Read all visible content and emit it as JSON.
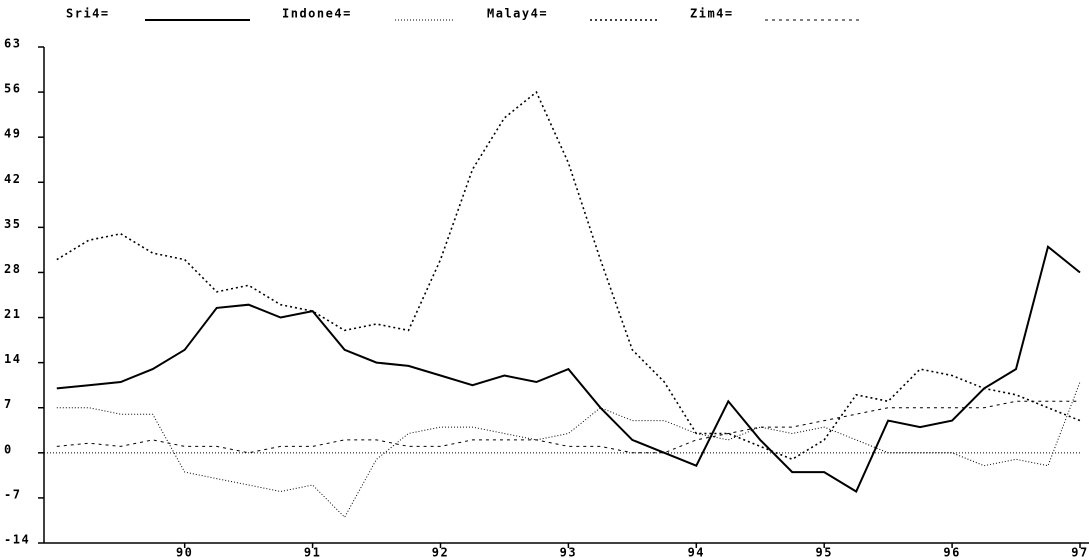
{
  "chart_data": {
    "type": "line",
    "x": [
      89,
      89.25,
      89.5,
      89.75,
      90,
      90.25,
      90.5,
      90.75,
      91,
      91.25,
      91.5,
      91.75,
      92,
      92.25,
      92.5,
      92.75,
      93,
      93.25,
      93.5,
      93.75,
      94,
      94.25,
      94.5,
      94.75,
      95,
      95.25,
      95.5,
      95.75,
      96,
      96.25,
      96.5,
      96.75,
      97
    ],
    "series": [
      {
        "name": "Sri4=",
        "color": "#000000",
        "style": "solid",
        "values": [
          10,
          10.5,
          11,
          13,
          16,
          22.5,
          23,
          21,
          22,
          16,
          14,
          13.5,
          12,
          10.5,
          12,
          11,
          13,
          7,
          2,
          0,
          -2,
          8,
          2,
          -3,
          -3,
          -6,
          5,
          4,
          5,
          10,
          13,
          32,
          28
        ]
      },
      {
        "name": "Indone4=",
        "color": "#000000",
        "style": "dotted",
        "values": [
          7,
          7,
          6,
          6,
          -3,
          -4,
          -5,
          -6,
          -5,
          -10,
          -1,
          3,
          4,
          4,
          3,
          2,
          3,
          7,
          5,
          5,
          3,
          2,
          4,
          3,
          4,
          2,
          0,
          0,
          0,
          -2,
          -1,
          -2,
          11
        ]
      },
      {
        "name": "Malay4=",
        "color": "#000000",
        "style": "short-dash",
        "values": [
          30,
          33,
          34,
          31,
          30,
          25,
          26,
          23,
          22,
          19,
          20,
          19,
          30,
          44,
          52,
          56,
          45,
          30,
          16,
          11,
          3,
          3,
          1,
          -1,
          2,
          9,
          8,
          13,
          12,
          10,
          9,
          7,
          5
        ]
      },
      {
        "name": "Zim4=",
        "color": "#000000",
        "style": "dashed",
        "values": [
          1,
          1.5,
          1,
          2,
          1,
          1,
          0,
          1,
          1,
          2,
          2,
          1,
          1,
          2,
          2,
          2,
          1,
          1,
          0,
          0,
          2,
          3,
          4,
          4,
          5,
          6,
          7,
          7,
          7,
          7,
          8,
          8,
          8
        ]
      }
    ],
    "xlim": [
      88.9,
      97
    ],
    "xticks": [
      90,
      91,
      92,
      93,
      94,
      95,
      96,
      97
    ],
    "ylim": [
      -14,
      63
    ],
    "yticks": [
      -14,
      -7,
      0,
      7,
      14,
      21,
      28,
      35,
      42,
      49,
      56,
      63
    ],
    "reference_line": 0
  }
}
